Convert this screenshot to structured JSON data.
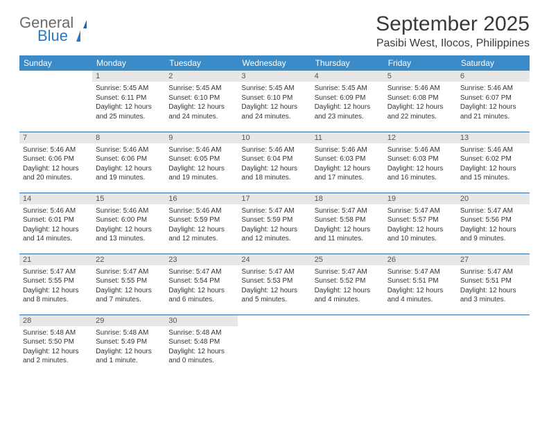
{
  "brand": {
    "word1": "General",
    "word2": "Blue"
  },
  "header": {
    "title": "September 2025",
    "location": "Pasibi West, Ilocos, Philippines"
  },
  "columns": [
    "Sunday",
    "Monday",
    "Tuesday",
    "Wednesday",
    "Thursday",
    "Friday",
    "Saturday"
  ],
  "colors": {
    "header_bg": "#3b8bc8",
    "header_text": "#ffffff",
    "row_divider": "#2f6ea8",
    "daynum_bg": "#e7e7e7",
    "brand_blue": "#2b78c2",
    "brand_gray": "#6a6a6a",
    "text": "#333333",
    "page_bg": "#ffffff"
  },
  "weeks": [
    [
      null,
      {
        "n": "1",
        "sr": "Sunrise: 5:45 AM",
        "ss": "Sunset: 6:11 PM",
        "d1": "Daylight: 12 hours",
        "d2": "and 25 minutes."
      },
      {
        "n": "2",
        "sr": "Sunrise: 5:45 AM",
        "ss": "Sunset: 6:10 PM",
        "d1": "Daylight: 12 hours",
        "d2": "and 24 minutes."
      },
      {
        "n": "3",
        "sr": "Sunrise: 5:45 AM",
        "ss": "Sunset: 6:10 PM",
        "d1": "Daylight: 12 hours",
        "d2": "and 24 minutes."
      },
      {
        "n": "4",
        "sr": "Sunrise: 5:45 AM",
        "ss": "Sunset: 6:09 PM",
        "d1": "Daylight: 12 hours",
        "d2": "and 23 minutes."
      },
      {
        "n": "5",
        "sr": "Sunrise: 5:46 AM",
        "ss": "Sunset: 6:08 PM",
        "d1": "Daylight: 12 hours",
        "d2": "and 22 minutes."
      },
      {
        "n": "6",
        "sr": "Sunrise: 5:46 AM",
        "ss": "Sunset: 6:07 PM",
        "d1": "Daylight: 12 hours",
        "d2": "and 21 minutes."
      }
    ],
    [
      {
        "n": "7",
        "sr": "Sunrise: 5:46 AM",
        "ss": "Sunset: 6:06 PM",
        "d1": "Daylight: 12 hours",
        "d2": "and 20 minutes."
      },
      {
        "n": "8",
        "sr": "Sunrise: 5:46 AM",
        "ss": "Sunset: 6:06 PM",
        "d1": "Daylight: 12 hours",
        "d2": "and 19 minutes."
      },
      {
        "n": "9",
        "sr": "Sunrise: 5:46 AM",
        "ss": "Sunset: 6:05 PM",
        "d1": "Daylight: 12 hours",
        "d2": "and 19 minutes."
      },
      {
        "n": "10",
        "sr": "Sunrise: 5:46 AM",
        "ss": "Sunset: 6:04 PM",
        "d1": "Daylight: 12 hours",
        "d2": "and 18 minutes."
      },
      {
        "n": "11",
        "sr": "Sunrise: 5:46 AM",
        "ss": "Sunset: 6:03 PM",
        "d1": "Daylight: 12 hours",
        "d2": "and 17 minutes."
      },
      {
        "n": "12",
        "sr": "Sunrise: 5:46 AM",
        "ss": "Sunset: 6:03 PM",
        "d1": "Daylight: 12 hours",
        "d2": "and 16 minutes."
      },
      {
        "n": "13",
        "sr": "Sunrise: 5:46 AM",
        "ss": "Sunset: 6:02 PM",
        "d1": "Daylight: 12 hours",
        "d2": "and 15 minutes."
      }
    ],
    [
      {
        "n": "14",
        "sr": "Sunrise: 5:46 AM",
        "ss": "Sunset: 6:01 PM",
        "d1": "Daylight: 12 hours",
        "d2": "and 14 minutes."
      },
      {
        "n": "15",
        "sr": "Sunrise: 5:46 AM",
        "ss": "Sunset: 6:00 PM",
        "d1": "Daylight: 12 hours",
        "d2": "and 13 minutes."
      },
      {
        "n": "16",
        "sr": "Sunrise: 5:46 AM",
        "ss": "Sunset: 5:59 PM",
        "d1": "Daylight: 12 hours",
        "d2": "and 12 minutes."
      },
      {
        "n": "17",
        "sr": "Sunrise: 5:47 AM",
        "ss": "Sunset: 5:59 PM",
        "d1": "Daylight: 12 hours",
        "d2": "and 12 minutes."
      },
      {
        "n": "18",
        "sr": "Sunrise: 5:47 AM",
        "ss": "Sunset: 5:58 PM",
        "d1": "Daylight: 12 hours",
        "d2": "and 11 minutes."
      },
      {
        "n": "19",
        "sr": "Sunrise: 5:47 AM",
        "ss": "Sunset: 5:57 PM",
        "d1": "Daylight: 12 hours",
        "d2": "and 10 minutes."
      },
      {
        "n": "20",
        "sr": "Sunrise: 5:47 AM",
        "ss": "Sunset: 5:56 PM",
        "d1": "Daylight: 12 hours",
        "d2": "and 9 minutes."
      }
    ],
    [
      {
        "n": "21",
        "sr": "Sunrise: 5:47 AM",
        "ss": "Sunset: 5:55 PM",
        "d1": "Daylight: 12 hours",
        "d2": "and 8 minutes."
      },
      {
        "n": "22",
        "sr": "Sunrise: 5:47 AM",
        "ss": "Sunset: 5:55 PM",
        "d1": "Daylight: 12 hours",
        "d2": "and 7 minutes."
      },
      {
        "n": "23",
        "sr": "Sunrise: 5:47 AM",
        "ss": "Sunset: 5:54 PM",
        "d1": "Daylight: 12 hours",
        "d2": "and 6 minutes."
      },
      {
        "n": "24",
        "sr": "Sunrise: 5:47 AM",
        "ss": "Sunset: 5:53 PM",
        "d1": "Daylight: 12 hours",
        "d2": "and 5 minutes."
      },
      {
        "n": "25",
        "sr": "Sunrise: 5:47 AM",
        "ss": "Sunset: 5:52 PM",
        "d1": "Daylight: 12 hours",
        "d2": "and 4 minutes."
      },
      {
        "n": "26",
        "sr": "Sunrise: 5:47 AM",
        "ss": "Sunset: 5:51 PM",
        "d1": "Daylight: 12 hours",
        "d2": "and 4 minutes."
      },
      {
        "n": "27",
        "sr": "Sunrise: 5:47 AM",
        "ss": "Sunset: 5:51 PM",
        "d1": "Daylight: 12 hours",
        "d2": "and 3 minutes."
      }
    ],
    [
      {
        "n": "28",
        "sr": "Sunrise: 5:48 AM",
        "ss": "Sunset: 5:50 PM",
        "d1": "Daylight: 12 hours",
        "d2": "and 2 minutes."
      },
      {
        "n": "29",
        "sr": "Sunrise: 5:48 AM",
        "ss": "Sunset: 5:49 PM",
        "d1": "Daylight: 12 hours",
        "d2": "and 1 minute."
      },
      {
        "n": "30",
        "sr": "Sunrise: 5:48 AM",
        "ss": "Sunset: 5:48 PM",
        "d1": "Daylight: 12 hours",
        "d2": "and 0 minutes."
      },
      null,
      null,
      null,
      null
    ]
  ]
}
